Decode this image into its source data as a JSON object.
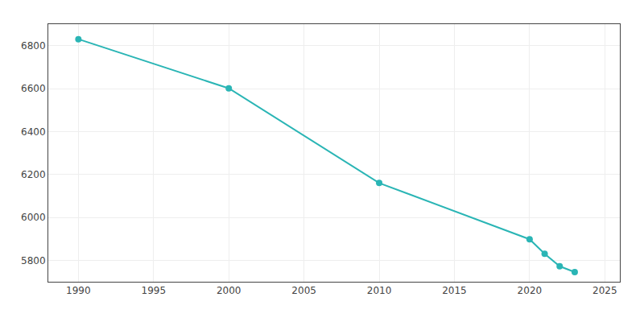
{
  "chart_data": {
    "type": "line",
    "x": [
      1990,
      2000,
      2010,
      2020,
      2021,
      2022,
      2023
    ],
    "values": [
      6830,
      6601,
      6160,
      5898,
      5830,
      5772,
      5745
    ],
    "color": "#2ab5b5",
    "marker": "circle",
    "xlim": [
      1988,
      2026
    ],
    "ylim": [
      5700,
      6900
    ],
    "xticks": [
      1990,
      1995,
      2000,
      2005,
      2010,
      2015,
      2020,
      2025
    ],
    "yticks": [
      5800,
      6000,
      6200,
      6400,
      6600,
      6800
    ],
    "grid": true
  }
}
